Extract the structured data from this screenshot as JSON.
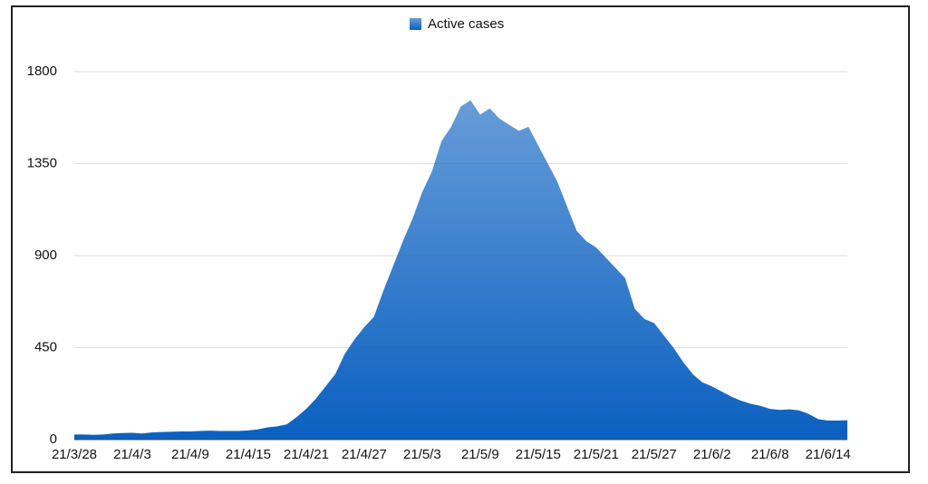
{
  "chart_data": {
    "type": "area",
    "categories": [
      "21/3/28",
      null,
      null,
      null,
      null,
      null,
      "21/4/3",
      null,
      null,
      null,
      null,
      null,
      "21/4/9",
      null,
      null,
      null,
      null,
      null,
      "21/4/15",
      null,
      null,
      null,
      null,
      null,
      "21/4/21",
      null,
      null,
      null,
      null,
      null,
      "21/4/27",
      null,
      null,
      null,
      null,
      null,
      "21/5/3",
      null,
      null,
      null,
      null,
      null,
      "21/5/9",
      null,
      null,
      null,
      null,
      null,
      "21/5/15",
      null,
      null,
      null,
      null,
      null,
      "21/5/21",
      null,
      null,
      null,
      null,
      null,
      "21/5/27",
      null,
      null,
      null,
      null,
      null,
      "21/6/2",
      null,
      null,
      null,
      null,
      null,
      "21/6/8",
      null,
      null,
      null,
      null,
      null,
      "21/6/14",
      null,
      null
    ],
    "series": [
      {
        "name": "Active cases",
        "color": "#0a60c0",
        "values": [
          25,
          25,
          23,
          25,
          30,
          32,
          33,
          30,
          35,
          37,
          38,
          40,
          40,
          42,
          44,
          42,
          42,
          42,
          45,
          50,
          60,
          65,
          75,
          110,
          150,
          200,
          260,
          320,
          420,
          490,
          550,
          600,
          730,
          850,
          970,
          1080,
          1210,
          1310,
          1460,
          1530,
          1630,
          1660,
          1590,
          1620,
          1570,
          1540,
          1510,
          1530,
          1440,
          1350,
          1260,
          1140,
          1020,
          970,
          940,
          890,
          840,
          790,
          640,
          590,
          570,
          510,
          450,
          380,
          320,
          280,
          260,
          235,
          210,
          190,
          175,
          165,
          150,
          145,
          148,
          143,
          125,
          100,
          93,
          93,
          95
        ]
      }
    ],
    "ylim": [
      0,
      1800
    ],
    "yticks": [
      0,
      450,
      900,
      1350,
      1800
    ],
    "grid": true
  }
}
